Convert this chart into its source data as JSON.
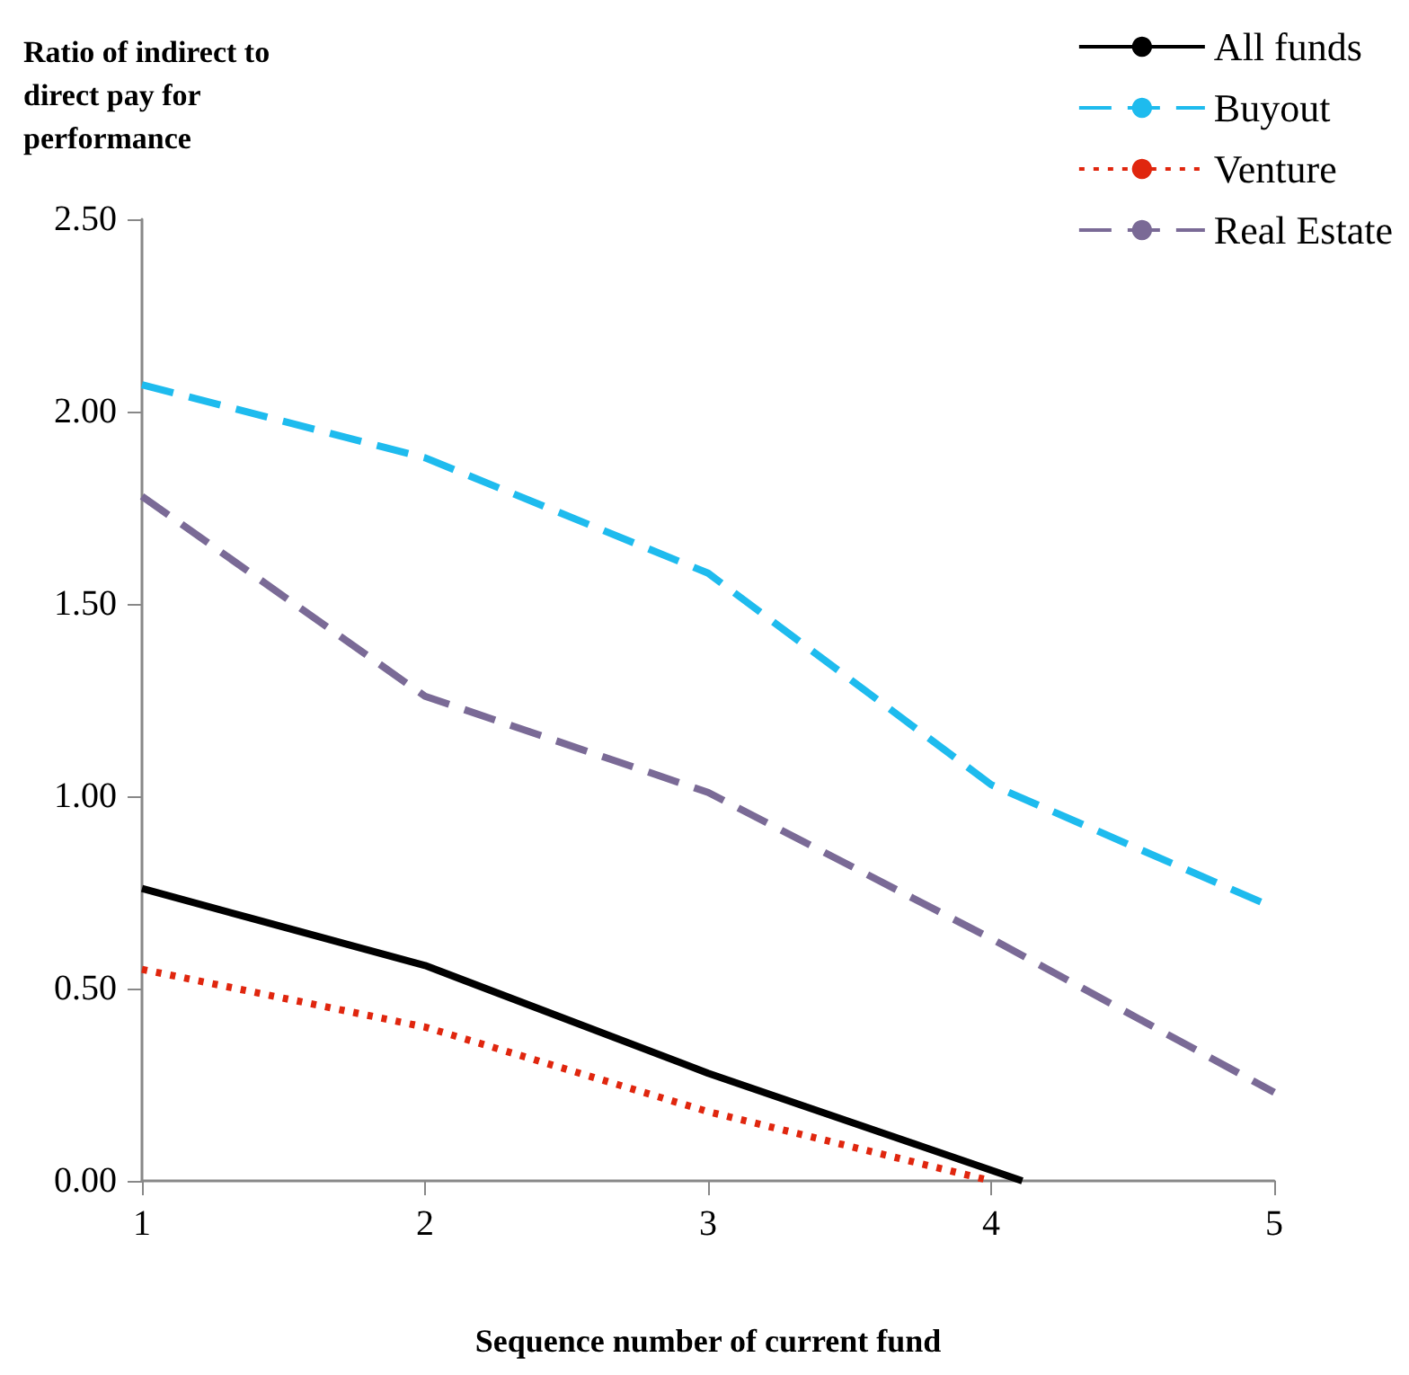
{
  "chart_data": {
    "type": "line",
    "ylabel": "Ratio of indirect to direct pay for performance",
    "xlabel": "Sequence number of current fund",
    "series": [
      {
        "name": "All funds",
        "color": "#000000",
        "line_style": "solid",
        "x": [
          1,
          2,
          3,
          4.11
        ],
        "values": [
          0.76,
          0.56,
          0.28,
          0
        ]
      },
      {
        "name": "Buyout",
        "color": "#1ebbee",
        "line_style": "dashed",
        "x": [
          1,
          2,
          3,
          4,
          5
        ],
        "values": [
          2.07,
          1.88,
          1.58,
          1.03,
          0.71
        ]
      },
      {
        "name": "Venture",
        "color": "#e0260e",
        "line_style": "dotted",
        "x": [
          1,
          2,
          3,
          4
        ],
        "values": [
          0.55,
          0.4,
          0.18,
          0
        ]
      },
      {
        "name": "Real Estate",
        "color": "#7a6a96",
        "line_style": "dashed",
        "x": [
          1,
          2,
          3,
          4,
          5
        ],
        "values": [
          1.78,
          1.26,
          1.01,
          0.63,
          0.23
        ]
      }
    ],
    "xlim": [
      1,
      5
    ],
    "xticks": [
      1,
      2,
      3,
      4,
      5
    ],
    "ylim": [
      0,
      2.5
    ],
    "yticks": [
      {
        "value": 0,
        "label": "0.00"
      },
      {
        "value": 0.5,
        "label": "0.50"
      },
      {
        "value": 1,
        "label": "1.00"
      },
      {
        "value": 1.5,
        "label": "1.50"
      },
      {
        "value": 2,
        "label": "2.00"
      },
      {
        "value": 2.5,
        "label": "2.50"
      }
    ],
    "grid": false,
    "legend": "top right",
    "marker": "none"
  }
}
